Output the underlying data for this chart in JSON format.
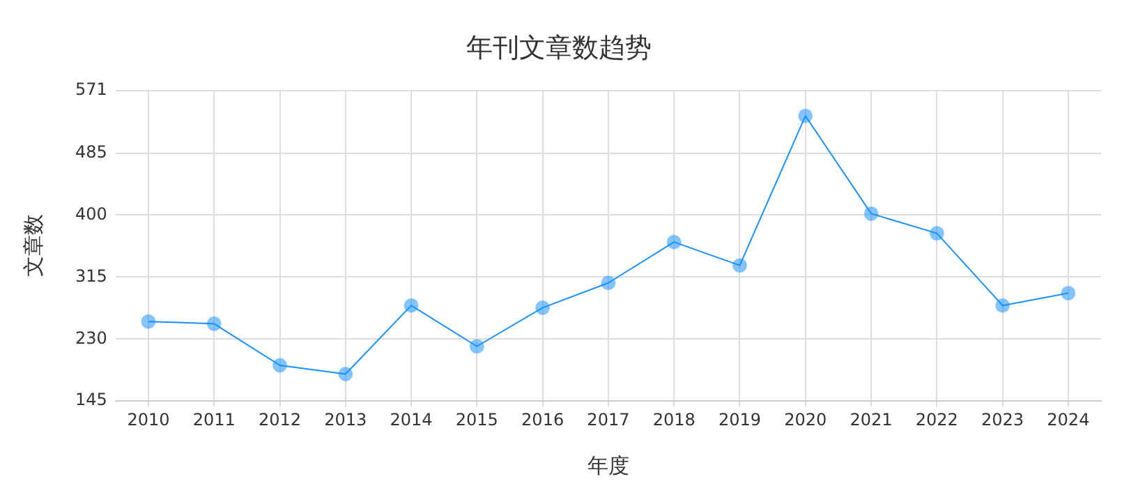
{
  "chart_data": {
    "type": "line",
    "title": "年刊文章数趋势",
    "xlabel": "年度",
    "ylabel": "文章数",
    "categories": [
      "2010",
      "2011",
      "2012",
      "2013",
      "2014",
      "2015",
      "2016",
      "2017",
      "2018",
      "2019",
      "2020",
      "2021",
      "2022",
      "2023",
      "2024"
    ],
    "series": [
      {
        "color": "#1890ff",
        "values": [
          254,
          251,
          194,
          182,
          276,
          220,
          273,
          307,
          363,
          331,
          536,
          402,
          375,
          276,
          293
        ]
      }
    ],
    "ylim": [
      145,
      571
    ],
    "yticks": [
      145,
      230,
      315,
      400,
      485,
      571
    ],
    "grid": true,
    "legend": false,
    "marker": "circle",
    "line_style": "solid"
  }
}
